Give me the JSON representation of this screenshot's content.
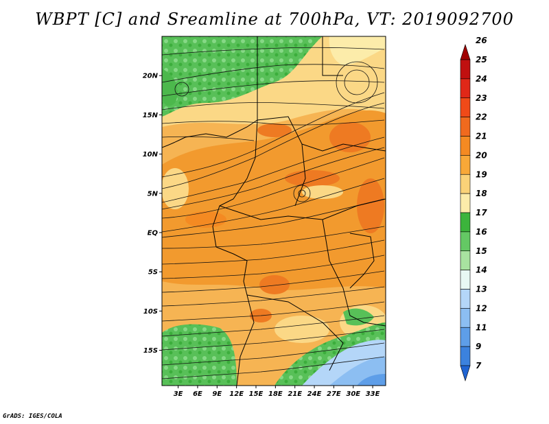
{
  "title": "WBPT [C] and Sreamline at 700hPa, VT: 2019092700",
  "credit": "GrADS: IGES/COLA",
  "map": {
    "lat_labels": [
      "20N",
      "15N",
      "10N",
      "5N",
      "EQ",
      "5S",
      "10S",
      "15S"
    ],
    "lat_values": [
      20,
      15,
      10,
      5,
      0,
      -5,
      -10,
      -15
    ],
    "lon_labels": [
      "3E",
      "6E",
      "9E",
      "12E",
      "15E",
      "18E",
      "21E",
      "24E",
      "27E",
      "30E",
      "33E"
    ],
    "lon_values": [
      3,
      6,
      9,
      12,
      15,
      18,
      21,
      24,
      27,
      30,
      33
    ],
    "lon_range": [
      0.5,
      35
    ],
    "lat_range": [
      -19.5,
      25
    ]
  },
  "colorbar": {
    "labels": [
      "26",
      "25",
      "24",
      "23",
      "22",
      "21",
      "20",
      "19",
      "18",
      "17",
      "16",
      "15",
      "14",
      "13",
      "12",
      "11",
      "9",
      "7"
    ],
    "colors": [
      "#a00000",
      "#c01010",
      "#e02818",
      "#f04a18",
      "#f06a1e",
      "#f48a22",
      "#f8a838",
      "#fad278",
      "#fcecaa",
      "#3cb43c",
      "#64c864",
      "#a8e2a0",
      "#e8f8f4",
      "#b4d6f8",
      "#8cbef2",
      "#5e9ee8",
      "#3c82de",
      "#2064d2"
    ]
  }
}
